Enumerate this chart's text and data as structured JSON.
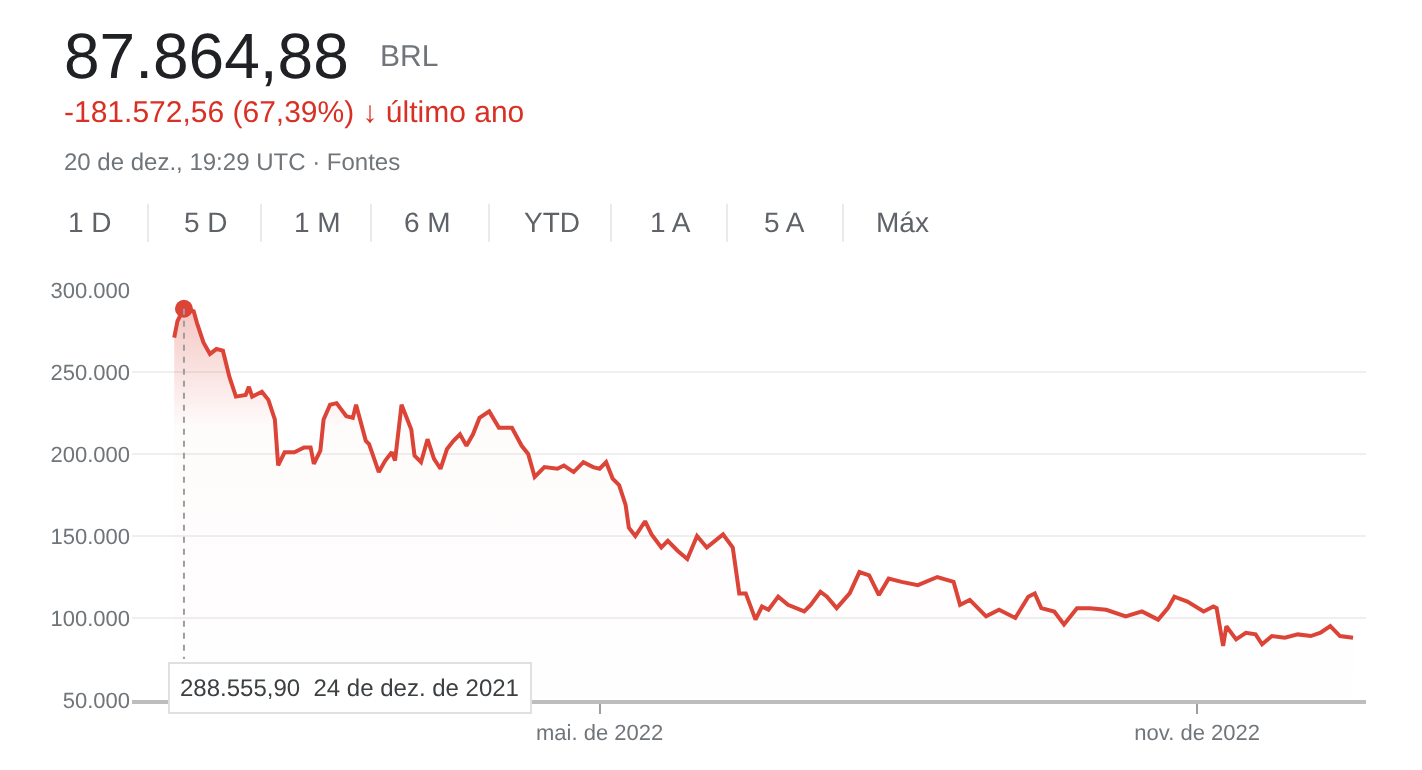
{
  "chart_data": {
    "type": "area",
    "title": "87.864,88",
    "subtitle": "-181.572,56 (67,39%) ↓ último ano",
    "x": [
      "2021-12-21",
      "2021-12-22",
      "2021-12-24",
      "2021-12-27",
      "2021-12-28",
      "2021-12-30",
      "2022-01-01",
      "2022-01-03",
      "2022-01-05",
      "2022-01-07",
      "2022-01-09",
      "2022-01-12",
      "2022-01-13",
      "2022-01-14",
      "2022-01-17",
      "2022-01-19",
      "2022-01-21",
      "2022-01-22",
      "2022-01-24",
      "2022-01-27",
      "2022-01-30",
      "2022-02-01",
      "2022-02-02",
      "2022-02-04",
      "2022-02-05",
      "2022-02-07",
      "2022-02-09",
      "2022-02-12",
      "2022-02-14",
      "2022-02-15",
      "2022-02-18",
      "2022-02-19",
      "2022-02-22",
      "2022-02-24",
      "2022-02-26",
      "2022-02-27",
      "2022-03-01",
      "2022-03-04",
      "2022-03-05",
      "2022-03-07",
      "2022-03-09",
      "2022-03-11",
      "2022-03-13",
      "2022-03-15",
      "2022-03-17",
      "2022-03-19",
      "2022-03-21",
      "2022-03-23",
      "2022-03-25",
      "2022-03-28",
      "2022-03-31",
      "2022-04-04",
      "2022-04-07",
      "2022-04-09",
      "2022-04-11",
      "2022-04-14",
      "2022-04-18",
      "2022-04-20",
      "2022-04-23",
      "2022-04-26",
      "2022-04-29",
      "2022-05-01",
      "2022-05-03",
      "2022-05-05",
      "2022-05-07",
      "2022-05-09",
      "2022-05-10",
      "2022-05-12",
      "2022-05-15",
      "2022-05-17",
      "2022-05-20",
      "2022-05-22",
      "2022-05-25",
      "2022-05-28",
      "2022-05-31",
      "2022-06-03",
      "2022-06-08",
      "2022-06-11",
      "2022-06-13",
      "2022-06-15",
      "2022-06-18",
      "2022-06-20",
      "2022-06-22",
      "2022-06-25",
      "2022-06-28",
      "2022-07-03",
      "2022-07-05",
      "2022-07-08",
      "2022-07-10",
      "2022-07-13",
      "2022-07-17",
      "2022-07-20",
      "2022-07-23",
      "2022-07-26",
      "2022-07-29",
      "2022-08-02",
      "2022-08-07",
      "2022-08-13",
      "2022-08-18",
      "2022-08-20",
      "2022-08-23",
      "2022-08-28",
      "2022-09-01",
      "2022-09-06",
      "2022-09-10",
      "2022-09-12",
      "2022-09-14",
      "2022-09-18",
      "2022-09-21",
      "2022-09-25",
      "2022-09-29",
      "2022-10-04",
      "2022-10-10",
      "2022-10-15",
      "2022-10-20",
      "2022-10-23",
      "2022-10-25",
      "2022-10-29",
      "2022-11-03",
      "2022-11-06",
      "2022-11-07",
      "2022-11-09",
      "2022-11-10",
      "2022-11-13",
      "2022-11-16",
      "2022-11-19",
      "2022-11-21",
      "2022-11-24",
      "2022-11-28",
      "2022-12-02",
      "2022-12-06",
      "2022-12-09",
      "2022-12-12",
      "2022-12-15",
      "2022-12-19"
    ],
    "series": [
      {
        "color": "#db4437",
        "values": [
          271000,
          281000,
          289000,
          287000,
          280000,
          268000,
          261000,
          264000,
          263000,
          247000,
          235000,
          236000,
          241000,
          235000,
          238000,
          233000,
          221000,
          193000,
          201000,
          201000,
          204000,
          204000,
          194000,
          202000,
          221000,
          230000,
          231000,
          223000,
          222000,
          230000,
          208000,
          206000,
          189000,
          196000,
          201000,
          196000,
          230000,
          215000,
          199000,
          195000,
          209000,
          197000,
          191000,
          203000,
          208000,
          212000,
          205000,
          212000,
          222000,
          226000,
          216000,
          216000,
          205000,
          200000,
          186000,
          192000,
          191000,
          193000,
          189000,
          195000,
          192000,
          191000,
          195000,
          185000,
          181000,
          169000,
          155000,
          150000,
          159000,
          151000,
          143000,
          147000,
          141000,
          136000,
          150000,
          143000,
          151000,
          143000,
          115000,
          115000,
          99000,
          107000,
          105000,
          113000,
          108000,
          104000,
          108000,
          116000,
          113000,
          106000,
          115000,
          128000,
          126000,
          114000,
          124000,
          122000,
          120000,
          125000,
          122000,
          108000,
          111000,
          101000,
          105000,
          100000,
          113000,
          115000,
          106000,
          104000,
          96000,
          106000,
          106000,
          105000,
          101000,
          104000,
          99000,
          106000,
          113000,
          110000,
          104000,
          107000,
          106000,
          83000,
          95000,
          87000,
          91000,
          90000,
          84000,
          89000,
          88000,
          90000,
          89000,
          91000,
          95000,
          89000,
          88000
        ]
      }
    ],
    "xlim": [
      "2021-12-08",
      "2022-12-23"
    ],
    "xticks": [
      {
        "value": "2022-05-01",
        "label": "mai. de 2022"
      },
      {
        "value": "2022-11-01",
        "label": "nov. de 2022"
      }
    ],
    "ylim": [
      50000,
      300000
    ],
    "yticks": [
      {
        "value": 50000,
        "label": "50.000"
      },
      {
        "value": 100000,
        "label": "100.000"
      },
      {
        "value": 150000,
        "label": "150.000"
      },
      {
        "value": 200000,
        "label": "200.000"
      },
      {
        "value": 250000,
        "label": "250.000"
      },
      {
        "value": 300000,
        "label": "300.000"
      }
    ],
    "grid": "y",
    "marker": "none",
    "line_style": "solid",
    "annotations": [
      "BRL",
      "20 de dez., 19:29 UTC · Fontes",
      "1 D",
      "5 D",
      "1 M",
      "6 M",
      "YTD",
      "1 A",
      "5 A",
      "Máx",
      {
        "text": "288.555,90  24 de dez. de 2021",
        "x": "2021-12-24",
        "y": 288555.9
      }
    ]
  }
}
